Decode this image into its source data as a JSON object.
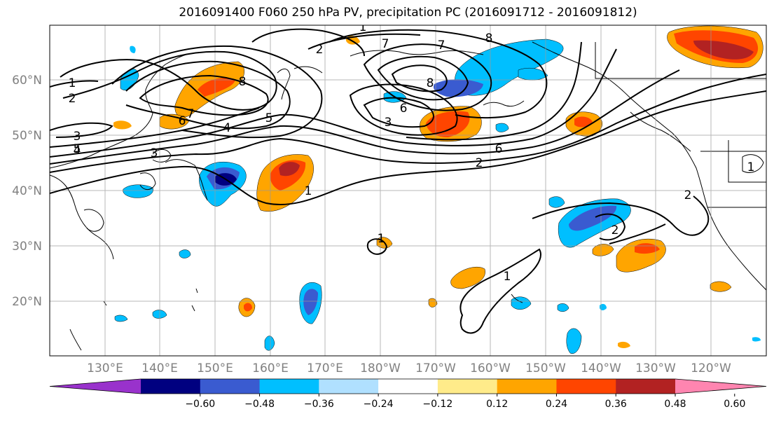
{
  "title": "2016091400 F060 250 hPa PV, precipitation PC (2016091712 - 2016091812)",
  "lat_labels": [
    "60°N",
    "50°N",
    "40°N",
    "30°N",
    "20°N"
  ],
  "lon_labels": [
    "130°E",
    "140°E",
    "150°E",
    "160°E",
    "170°E",
    "180°W",
    "170°W",
    "160°W",
    "150°W",
    "140°W",
    "130°W",
    "120°W"
  ],
  "colorbar": {
    "ticks": [
      "−0.60",
      "−0.48",
      "−0.36",
      "−0.24",
      "−0.12",
      "0.12",
      "0.24",
      "0.36",
      "0.48",
      "0.60"
    ],
    "colors": [
      "#9932cc",
      "#000080",
      "#3a5bd0",
      "#00bfff",
      "#b0e0ff",
      "#ffffff",
      "#ffeb8a",
      "#ffa500",
      "#ff4500",
      "#b22222",
      "#ff85b0"
    ]
  },
  "pv_labels": [
    {
      "text": "1"
    },
    {
      "text": "2"
    },
    {
      "text": "3"
    },
    {
      "text": "4"
    },
    {
      "text": "5"
    },
    {
      "text": "6"
    },
    {
      "text": "7"
    },
    {
      "text": "8"
    },
    {
      "text": "3"
    },
    {
      "text": "4"
    },
    {
      "text": "5"
    },
    {
      "text": "8"
    },
    {
      "text": "6"
    },
    {
      "text": "7"
    },
    {
      "text": "1"
    },
    {
      "text": "2"
    },
    {
      "text": "3"
    },
    {
      "text": "6"
    },
    {
      "text": "8"
    },
    {
      "text": "7"
    },
    {
      "text": "2"
    },
    {
      "text": "1"
    },
    {
      "text": "1"
    },
    {
      "text": "1"
    },
    {
      "text": "2"
    },
    {
      "text": "2"
    },
    {
      "text": "1"
    }
  ]
}
